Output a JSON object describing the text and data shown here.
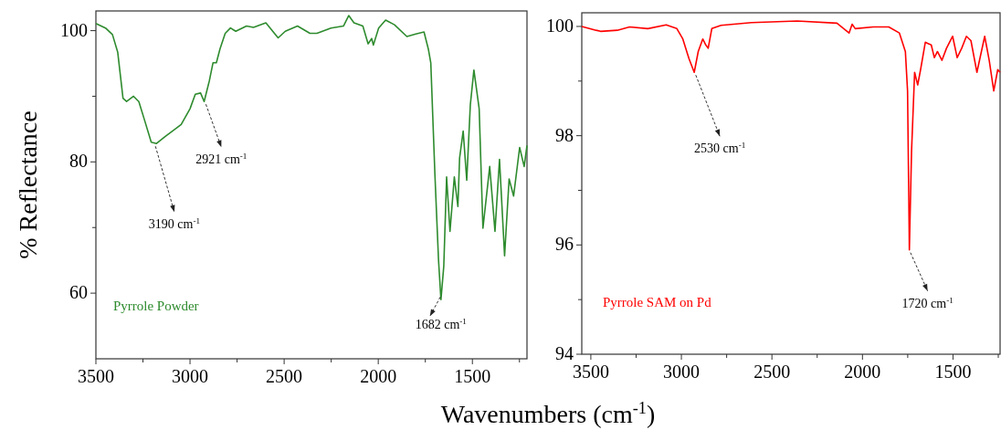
{
  "chart_data": [
    {
      "type": "line",
      "xlabel": "Wavenumbers (cm$^{-1}$)",
      "ylabel": "% Reflectance",
      "xlim": [
        3500,
        1210
      ],
      "ylim": [
        50,
        103
      ],
      "xticks": [
        3500,
        {
          "value": 3250,
          "label": null
        },
        3000,
        {
          "value": 2750,
          "label": null
        },
        2500,
        {
          "value": 2250,
          "label": null
        },
        2000,
        {
          "value": 1750,
          "label": null
        },
        1500,
        {
          "value": 1250,
          "label": null
        }
      ],
      "yticks": [
        60,
        {
          "value": 70,
          "label": null
        },
        80,
        {
          "value": 90,
          "label": null
        },
        100
      ],
      "series": [
        {
          "name": "Pyrrole Powder",
          "color": "#2e8b2e",
          "x": [
            3500,
            3449,
            3412,
            3384,
            3356,
            3337,
            3300,
            3272,
            3243,
            3206,
            3178,
            3131,
            3084,
            3047,
            3000,
            2972,
            2944,
            2925,
            2897,
            2878,
            2860,
            2841,
            2813,
            2785,
            2757,
            2700,
            2663,
            2597,
            2532,
            2494,
            2429,
            2363,
            2326,
            2251,
            2185,
            2157,
            2129,
            2082,
            2054,
            2035,
            2026,
            1998,
            1961,
            1914,
            1848,
            1801,
            1757,
            1734,
            1721,
            1699,
            1680,
            1667,
            1652,
            1637,
            1619,
            1596,
            1577,
            1568,
            1549,
            1530,
            1511,
            1492,
            1464,
            1444,
            1408,
            1380,
            1356,
            1329,
            1305,
            1281,
            1249,
            1225,
            1210
          ],
          "values": [
            101.1,
            100.4,
            99.4,
            96.7,
            89.7,
            89.2,
            90.0,
            89.2,
            86.5,
            83.0,
            82.8,
            83.9,
            84.9,
            85.7,
            88.1,
            90.3,
            90.5,
            89.2,
            92.4,
            95.1,
            95.1,
            97.2,
            99.6,
            100.4,
            99.9,
            100.7,
            100.5,
            101.2,
            98.9,
            99.9,
            100.7,
            99.6,
            99.6,
            100.4,
            100.7,
            102.3,
            101.2,
            100.7,
            98.0,
            98.8,
            97.8,
            100.4,
            101.6,
            100.9,
            99.1,
            99.5,
            99.8,
            97.2,
            95.1,
            78.0,
            65.1,
            59.0,
            64.1,
            77.7,
            69.4,
            77.7,
            73.2,
            80.6,
            84.7,
            77.2,
            88.7,
            94.0,
            88.1,
            69.9,
            79.3,
            69.4,
            80.4,
            65.7,
            77.4,
            74.8,
            82.2,
            79.3,
            82.5
          ]
        }
      ],
      "annotations": [
        {
          "text": "3190 cm$^{-1}$",
          "x": 3190,
          "y": 82.8
        },
        {
          "text": "2921 cm$^{-1}$",
          "x": 2921,
          "y": 89.2
        },
        {
          "text": "1682 cm$^{-1}$",
          "x": 1667,
          "y": 59.0
        }
      ]
    },
    {
      "type": "line",
      "xlim": [
        3550,
        1240
      ],
      "ylim": [
        94,
        100.25
      ],
      "xticks": [
        3500,
        {
          "value": 3250,
          "label": null
        },
        3000,
        {
          "value": 2750,
          "label": null
        },
        2500,
        {
          "value": 2250,
          "label": null
        },
        2000,
        {
          "value": 1750,
          "label": null
        },
        1500,
        {
          "value": 1250,
          "label": null
        }
      ],
      "yticks": [
        94,
        {
          "value": 95,
          "label": null
        },
        96,
        {
          "value": 97,
          "label": null
        },
        98,
        {
          "value": 99,
          "label": null
        },
        100
      ],
      "series": [
        {
          "name": "Pyrrole SAM on Pd",
          "color": "#ff0000",
          "x": [
            3550,
            3471,
            3446,
            3354,
            3286,
            3185,
            3084,
            3025,
            2992,
            2958,
            2929,
            2907,
            2882,
            2865,
            2852,
            2832,
            2781,
            2613,
            2360,
            2141,
            2074,
            2057,
            2040,
            1940,
            1855,
            1796,
            1763,
            1751,
            1741,
            1729,
            1712,
            1695,
            1679,
            1653,
            1620,
            1603,
            1586,
            1561,
            1536,
            1502,
            1477,
            1452,
            1426,
            1401,
            1368,
            1325,
            1300,
            1275,
            1253,
            1240
          ],
          "values": [
            100.0,
            99.93,
            99.91,
            99.93,
            99.99,
            99.96,
            100.03,
            99.96,
            99.77,
            99.41,
            99.16,
            99.54,
            99.77,
            99.66,
            99.6,
            99.96,
            100.02,
            100.07,
            100.1,
            100.06,
            99.88,
            100.04,
            99.96,
            99.99,
            99.99,
            99.88,
            99.54,
            98.82,
            95.91,
            97.71,
            99.16,
            98.93,
            99.21,
            99.71,
            99.66,
            99.43,
            99.54,
            99.38,
            99.6,
            99.82,
            99.43,
            99.6,
            99.82,
            99.74,
            99.16,
            99.82,
            99.38,
            98.82,
            99.21,
            99.16
          ]
        }
      ],
      "annotations": [
        {
          "text": "2530 cm$^{-1}$",
          "x": 2929,
          "y": 99.16
        },
        {
          "text": "1720 cm$^{-1}$",
          "x": 1741,
          "y": 95.91
        }
      ]
    }
  ]
}
